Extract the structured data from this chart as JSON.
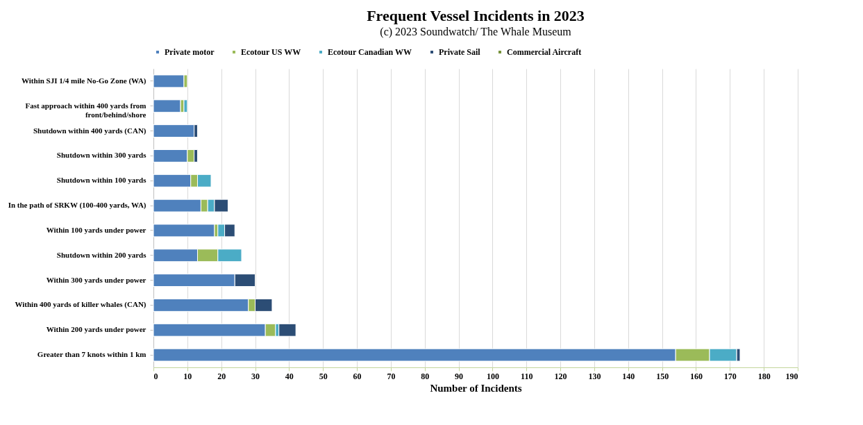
{
  "chart_data": {
    "type": "bar",
    "orientation": "horizontal",
    "stacked": true,
    "title": "Frequent Vessel Incidents in 2023",
    "subtitle": "(c) 2023 Soundwatch/ The Whale Museum",
    "xlabel": "Number of Incidents",
    "categories": [
      "Within SJI 1/4 mile No-Go Zone (WA)",
      "Fast approach within 400 yards from front/behind/shore",
      "Shutdown within 400 yards (CAN)",
      "Shutdown within 300 yards",
      "Shutdown within 100 yards",
      "In the path of SRKW (100-400 yards, WA)",
      "Within 100 yards under power",
      "Shutdown within 200 yards",
      "Within 300 yards under power",
      "Within 400 yards of killer whales (CAN)",
      "Within 200 yards under power",
      "Greater than 7 knots within 1 km"
    ],
    "series": [
      {
        "name": "Private motor",
        "color": "#4f81bd",
        "values": [
          9,
          8,
          12,
          10,
          11,
          14,
          18,
          13,
          24,
          28,
          33,
          154
        ]
      },
      {
        "name": "Ecotour US WW",
        "color": "#9bbb59",
        "values": [
          1,
          1,
          null,
          2,
          2,
          2,
          1,
          6,
          null,
          2,
          3,
          10
        ]
      },
      {
        "name": "Ecotour Canadian WW",
        "color": "#4bacc6",
        "values": [
          null,
          1,
          null,
          null,
          4,
          2,
          2,
          7,
          null,
          null,
          1,
          8
        ]
      },
      {
        "name": "Private Sail",
        "color": "#2c4d75",
        "values": [
          null,
          null,
          1,
          1,
          null,
          4,
          3,
          null,
          6,
          5,
          5,
          1
        ]
      },
      {
        "name": "Commercial Aircraft",
        "color": "#77933c",
        "values": [
          null,
          null,
          null,
          null,
          null,
          null,
          null,
          null,
          null,
          null,
          null,
          null
        ]
      }
    ],
    "xlim": [
      0,
      190
    ],
    "xticks": [
      0,
      10,
      20,
      30,
      40,
      50,
      60,
      70,
      80,
      90,
      100,
      110,
      120,
      130,
      140,
      150,
      160,
      170,
      180,
      190
    ],
    "grid": "x",
    "legend": "top"
  }
}
